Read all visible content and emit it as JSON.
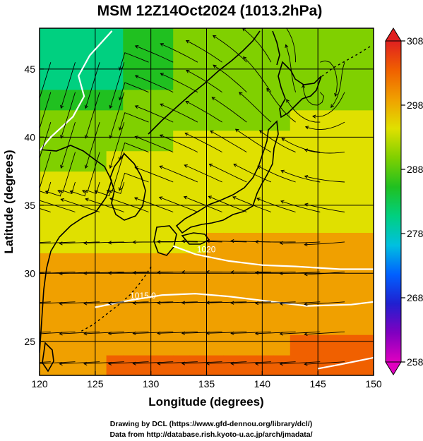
{
  "chart_data": {
    "type": "heatmap",
    "title": "MSM 12Z14Oct2024 (1013.2hPa)",
    "xlabel": "Longitude (degrees)",
    "ylabel": "Latitude  (degrees)",
    "xlim": [
      120,
      150
    ],
    "ylim": [
      22.5,
      48
    ],
    "x_ticks": [
      120,
      125,
      130,
      135,
      140,
      145,
      150
    ],
    "y_ticks": [
      25,
      30,
      35,
      40,
      45
    ],
    "colorbar": {
      "ticks": [
        258,
        268,
        278,
        288,
        298,
        308
      ],
      "range": [
        258,
        308
      ],
      "colors": [
        "#e000c0",
        "#8000c0",
        "#2020d0",
        "#0060ff",
        "#00c0e0",
        "#00d080",
        "#20c020",
        "#80d000",
        "#e0e000",
        "#f0a000",
        "#f06000",
        "#e02020"
      ]
    },
    "isobars": [
      {
        "label": "1020",
        "points": [
          [
            132,
            32.0
          ],
          [
            134,
            31.4
          ],
          [
            137,
            30.9
          ],
          [
            140,
            30.6
          ],
          [
            143,
            30.5
          ],
          [
            147,
            30.3
          ],
          [
            150,
            30.3
          ]
        ]
      },
      {
        "label": "1015.0",
        "points": [
          [
            125,
            27.5
          ],
          [
            128,
            28.0
          ],
          [
            131,
            28.4
          ],
          [
            134,
            28.5
          ],
          [
            137,
            28.3
          ],
          [
            141,
            27.9
          ],
          [
            144,
            27.6
          ],
          [
            148,
            27.7
          ],
          [
            150,
            27.9
          ]
        ]
      },
      {
        "label": "",
        "points": [
          [
            126.5,
            47.8
          ],
          [
            124.5,
            46.0
          ],
          [
            123.5,
            44.5
          ],
          [
            124.0,
            43.0
          ],
          [
            123.0,
            41.5
          ],
          [
            121.0,
            40.0
          ],
          [
            120,
            39.0
          ]
        ]
      },
      {
        "label": "",
        "points": [
          [
            145,
            23.0
          ],
          [
            147,
            23.3
          ],
          [
            150,
            23.8
          ]
        ]
      }
    ],
    "wind_field": "streamlines, predominantly northeasterly east of Japan turning easterly over the south and anticyclonic circulation near 145E 45N",
    "credits": [
      "Drawing by DCL (https://www.gfd-dennou.org/library/dcl/)",
      "Data from http://database.rish.kyoto-u.ac.jp/arch/jmadata/"
    ]
  }
}
